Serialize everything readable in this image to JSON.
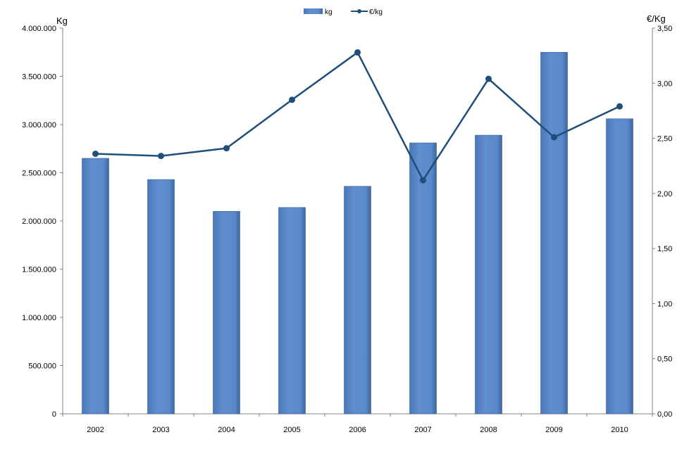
{
  "chart_data": {
    "type": "bar",
    "categories": [
      "2002",
      "2003",
      "2004",
      "2005",
      "2006",
      "2007",
      "2008",
      "2009",
      "2010"
    ],
    "series": [
      {
        "name": "kg",
        "type": "bar",
        "axis": "left",
        "color": "#5B8ACB",
        "values": [
          2650000,
          2430000,
          2100000,
          2140000,
          2360000,
          2810000,
          2890000,
          3750000,
          3060000
        ]
      },
      {
        "name": "€/kg",
        "type": "line",
        "axis": "right",
        "color": "#1F4E79",
        "values": [
          2.36,
          2.34,
          2.41,
          2.85,
          3.28,
          2.12,
          3.04,
          2.51,
          2.79
        ]
      }
    ],
    "left_axis": {
      "label": "Kg",
      "ylim": [
        0,
        4000000
      ],
      "ticks": [
        "0",
        "500.000",
        "1.000.000",
        "1.500.000",
        "2.000.000",
        "2.500.000",
        "3.000.000",
        "3.500.000",
        "4.000.000"
      ]
    },
    "right_axis": {
      "label": "€/Kg",
      "ylim": [
        0,
        3.5
      ],
      "ticks": [
        "0,00",
        "0,50",
        "1,00",
        "1,50",
        "2,00",
        "2,50",
        "3,00",
        "3,50"
      ]
    },
    "grid": false,
    "legend_position": "top-center"
  }
}
